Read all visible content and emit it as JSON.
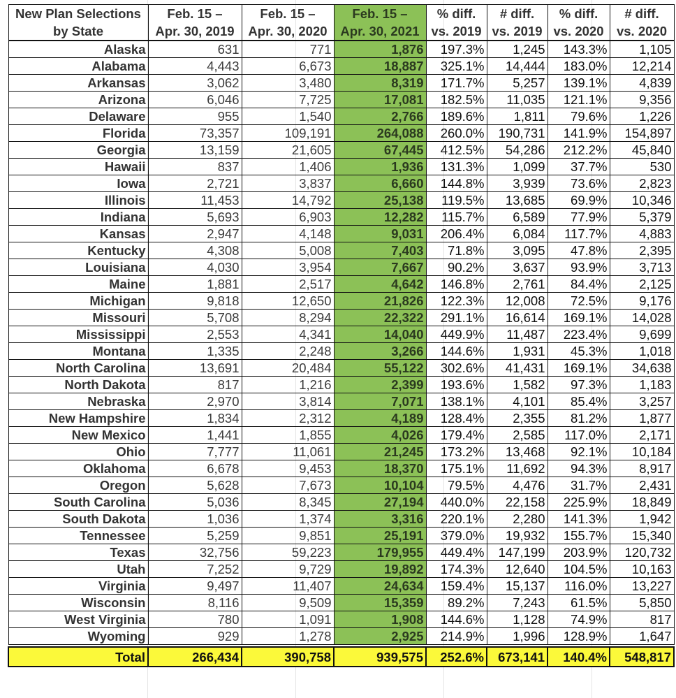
{
  "table": {
    "headers": [
      [
        "New Plan Selections",
        "by State"
      ],
      [
        "Feb. 15 –",
        "Apr. 30, 2019"
      ],
      [
        "Feb. 15 –",
        "Apr. 30, 2020"
      ],
      [
        "Feb. 15 –",
        "Apr. 30, 2021"
      ],
      [
        "% diff.",
        "vs. 2019"
      ],
      [
        "# diff.",
        "vs. 2019"
      ],
      [
        "% diff.",
        "vs. 2020"
      ],
      [
        "# diff.",
        "vs. 2020"
      ]
    ],
    "rows": [
      [
        "Alaska",
        "631",
        "771",
        "1,876",
        "197.3%",
        "1,245",
        "143.3%",
        "1,105"
      ],
      [
        "Alabama",
        "4,443",
        "6,673",
        "18,887",
        "325.1%",
        "14,444",
        "183.0%",
        "12,214"
      ],
      [
        "Arkansas",
        "3,062",
        "3,480",
        "8,319",
        "171.7%",
        "5,257",
        "139.1%",
        "4,839"
      ],
      [
        "Arizona",
        "6,046",
        "7,725",
        "17,081",
        "182.5%",
        "11,035",
        "121.1%",
        "9,356"
      ],
      [
        "Delaware",
        "955",
        "1,540",
        "2,766",
        "189.6%",
        "1,811",
        "79.6%",
        "1,226"
      ],
      [
        "Florida",
        "73,357",
        "109,191",
        "264,088",
        "260.0%",
        "190,731",
        "141.9%",
        "154,897"
      ],
      [
        "Georgia",
        "13,159",
        "21,605",
        "67,445",
        "412.5%",
        "54,286",
        "212.2%",
        "45,840"
      ],
      [
        "Hawaii",
        "837",
        "1,406",
        "1,936",
        "131.3%",
        "1,099",
        "37.7%",
        "530"
      ],
      [
        "Iowa",
        "2,721",
        "3,837",
        "6,660",
        "144.8%",
        "3,939",
        "73.6%",
        "2,823"
      ],
      [
        "Illinois",
        "11,453",
        "14,792",
        "25,138",
        "119.5%",
        "13,685",
        "69.9%",
        "10,346"
      ],
      [
        "Indiana",
        "5,693",
        "6,903",
        "12,282",
        "115.7%",
        "6,589",
        "77.9%",
        "5,379"
      ],
      [
        "Kansas",
        "2,947",
        "4,148",
        "9,031",
        "206.4%",
        "6,084",
        "117.7%",
        "4,883"
      ],
      [
        "Kentucky",
        "4,308",
        "5,008",
        "7,403",
        "71.8%",
        "3,095",
        "47.8%",
        "2,395"
      ],
      [
        "Louisiana",
        "4,030",
        "3,954",
        "7,667",
        "90.2%",
        "3,637",
        "93.9%",
        "3,713"
      ],
      [
        "Maine",
        "1,881",
        "2,517",
        "4,642",
        "146.8%",
        "2,761",
        "84.4%",
        "2,125"
      ],
      [
        "Michigan",
        "9,818",
        "12,650",
        "21,826",
        "122.3%",
        "12,008",
        "72.5%",
        "9,176"
      ],
      [
        "Missouri",
        "5,708",
        "8,294",
        "22,322",
        "291.1%",
        "16,614",
        "169.1%",
        "14,028"
      ],
      [
        "Mississippi",
        "2,553",
        "4,341",
        "14,040",
        "449.9%",
        "11,487",
        "223.4%",
        "9,699"
      ],
      [
        "Montana",
        "1,335",
        "2,248",
        "3,266",
        "144.6%",
        "1,931",
        "45.3%",
        "1,018"
      ],
      [
        "North Carolina",
        "13,691",
        "20,484",
        "55,122",
        "302.6%",
        "41,431",
        "169.1%",
        "34,638"
      ],
      [
        "North Dakota",
        "817",
        "1,216",
        "2,399",
        "193.6%",
        "1,582",
        "97.3%",
        "1,183"
      ],
      [
        "Nebraska",
        "2,970",
        "3,814",
        "7,071",
        "138.1%",
        "4,101",
        "85.4%",
        "3,257"
      ],
      [
        "New Hampshire",
        "1,834",
        "2,312",
        "4,189",
        "128.4%",
        "2,355",
        "81.2%",
        "1,877"
      ],
      [
        "New Mexico",
        "1,441",
        "1,855",
        "4,026",
        "179.4%",
        "2,585",
        "117.0%",
        "2,171"
      ],
      [
        "Ohio",
        "7,777",
        "11,061",
        "21,245",
        "173.2%",
        "13,468",
        "92.1%",
        "10,184"
      ],
      [
        "Oklahoma",
        "6,678",
        "9,453",
        "18,370",
        "175.1%",
        "11,692",
        "94.3%",
        "8,917"
      ],
      [
        "Oregon",
        "5,628",
        "7,673",
        "10,104",
        "79.5%",
        "4,476",
        "31.7%",
        "2,431"
      ],
      [
        "South Carolina",
        "5,036",
        "8,345",
        "27,194",
        "440.0%",
        "22,158",
        "225.9%",
        "18,849"
      ],
      [
        "South Dakota",
        "1,036",
        "1,374",
        "3,316",
        "220.1%",
        "2,280",
        "141.3%",
        "1,942"
      ],
      [
        "Tennessee",
        "5,259",
        "9,851",
        "25,191",
        "379.0%",
        "19,932",
        "155.7%",
        "15,340"
      ],
      [
        "Texas",
        "32,756",
        "59,223",
        "179,955",
        "449.4%",
        "147,199",
        "203.9%",
        "120,732"
      ],
      [
        "Utah",
        "7,252",
        "9,729",
        "19,892",
        "174.3%",
        "12,640",
        "104.5%",
        "10,163"
      ],
      [
        "Virginia",
        "9,497",
        "11,407",
        "24,634",
        "159.4%",
        "15,137",
        "116.0%",
        "13,227"
      ],
      [
        "Wisconsin",
        "8,116",
        "9,509",
        "15,359",
        "89.2%",
        "7,243",
        "61.5%",
        "5,850"
      ],
      [
        "West Virginia",
        "780",
        "1,091",
        "1,908",
        "144.6%",
        "1,128",
        "74.9%",
        "817"
      ],
      [
        "Wyoming",
        "929",
        "1,278",
        "2,925",
        "214.9%",
        "1,996",
        "128.9%",
        "1,647"
      ]
    ],
    "total": [
      "Total",
      "266,434",
      "390,758",
      "939,575",
      "252.6%",
      "673,141",
      "140.4%",
      "548,817"
    ]
  },
  "colors": {
    "highlight_column": "#8cc157",
    "total_row": "#fbf93a"
  }
}
